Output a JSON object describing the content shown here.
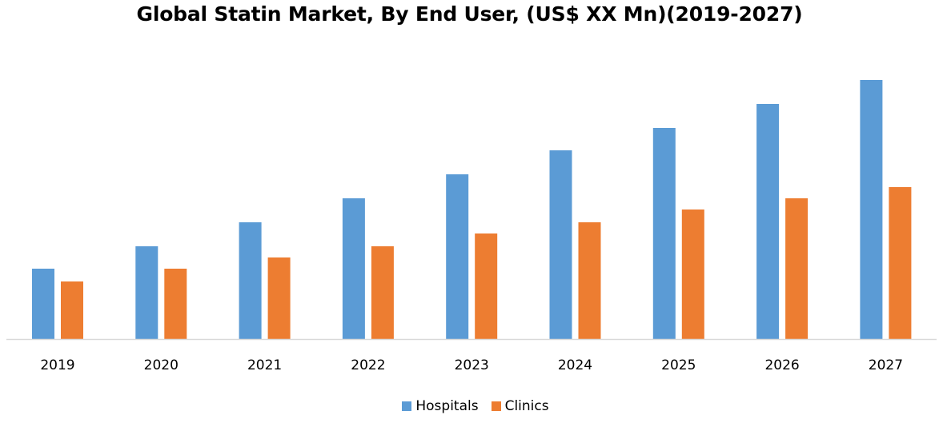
{
  "chart_data": {
    "type": "bar",
    "title": "Global Statin Market, By End User, (US$ XX Mn)(2019-2027)",
    "categories": [
      "2019",
      "2020",
      "2021",
      "2022",
      "2023",
      "2024",
      "2025",
      "2026",
      "2027"
    ],
    "series": [
      {
        "name": "Hospitals",
        "color": "#5B9BD5",
        "values": [
          88,
          116,
          146,
          176,
          206,
          236,
          264,
          294,
          324
        ]
      },
      {
        "name": "Clinics",
        "color": "#ED7D31",
        "values": [
          72,
          88,
          102,
          116,
          132,
          146,
          162,
          176,
          190
        ]
      }
    ],
    "xlabel": "",
    "ylabel": "",
    "ylim": [
      0,
      340
    ],
    "grid": false,
    "y_axis_visible": false,
    "legend_position": "bottom"
  }
}
